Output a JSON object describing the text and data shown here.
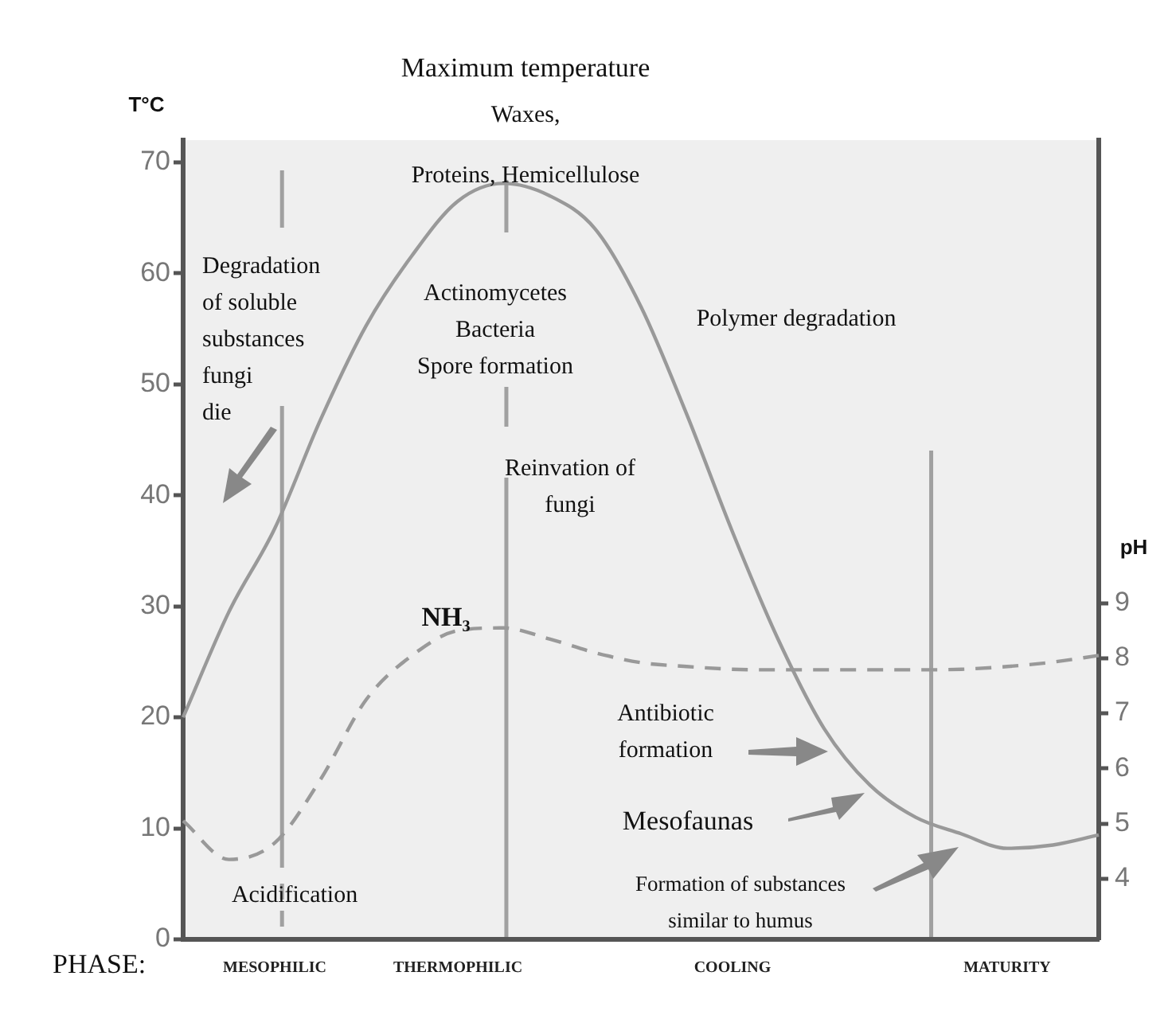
{
  "chart_data": {
    "type": "line",
    "title": "Maximum temperature",
    "xlabel": "PHASE:",
    "ylabel": "T°C",
    "y2label": "pH",
    "categories": [
      null,
      null,
      "MESOPHILIC",
      null,
      null,
      null,
      "THERMOPHILIC",
      null,
      null,
      null,
      null,
      null,
      "COOLING",
      null,
      null,
      null,
      null,
      null,
      "MATURITY",
      null,
      null
    ],
    "ylim": [
      0,
      72
    ],
    "yticks": [
      0,
      10,
      20,
      30,
      40,
      50,
      60,
      70
    ],
    "y2lim": [
      2.9,
      17.4
    ],
    "y2ticks": [
      4,
      5,
      6,
      7,
      8,
      9
    ],
    "grid": false,
    "legend": false,
    "marker": "none",
    "series": [
      {
        "color": "#999999",
        "line_style": "solid",
        "values": [
          20,
          29.5,
          37,
          46.8,
          55.3,
          61.6,
          66.5,
          68.1,
          67,
          64,
          57,
          47.3,
          36.7,
          27,
          19,
          13.9,
          11,
          9.5,
          8.2,
          8.5,
          9.4
        ]
      },
      {
        "color": "#999999",
        "line_style": "dashed",
        "axis": "y2",
        "values": [
          5.05,
          4.35,
          4.65,
          5.8,
          7.25,
          8.05,
          8.5,
          8.55,
          8.35,
          8.1,
          7.92,
          7.85,
          7.8,
          7.79,
          7.79,
          7.79,
          7.79,
          7.8,
          7.85,
          7.93,
          8.05
        ]
      }
    ],
    "annotations": [
      "Waxes,",
      "Proteins, Hemicellulose",
      "Degradation\nof soluble\nsubstances\nfungi\ndie",
      "Actinomycetes\nBacteria\nSpore formation",
      "Polymer degradation",
      "Reinvation of\nfungi",
      "NH₃",
      "Acidification",
      "Antibiotic\nformation",
      "Mesofaunas",
      "Formation of substances\nsimilar to humus"
    ]
  }
}
